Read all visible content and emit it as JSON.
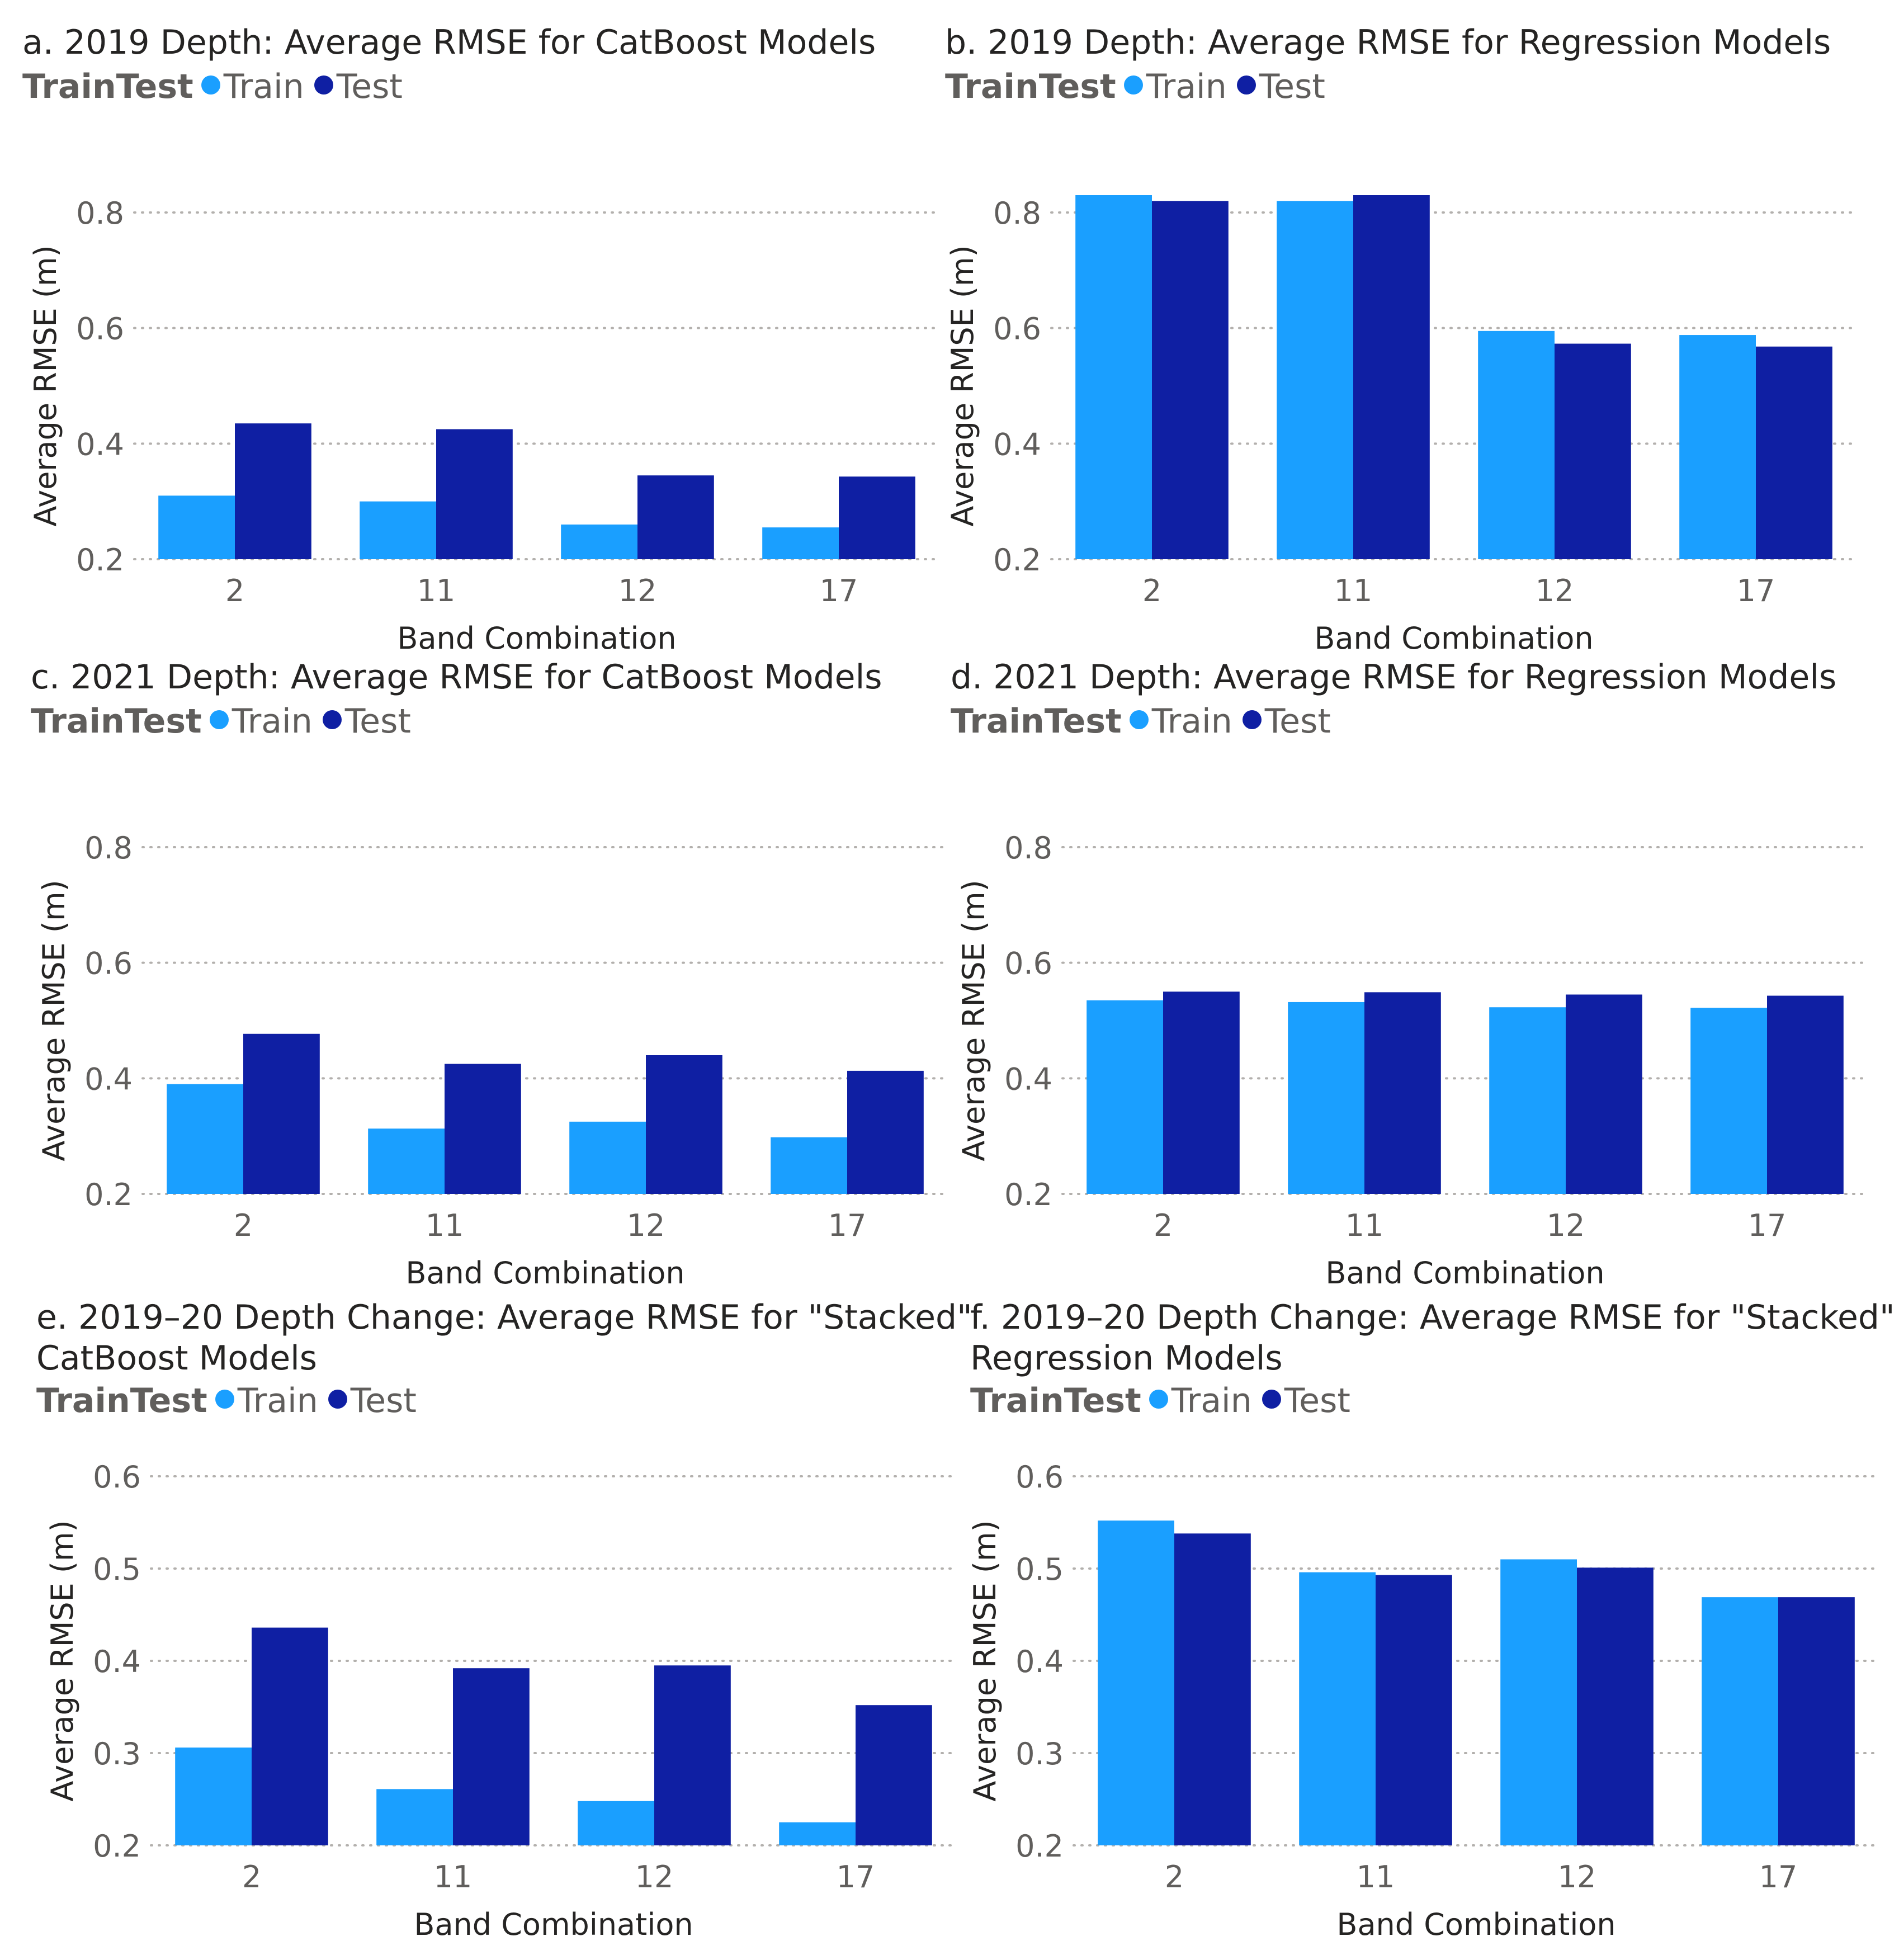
{
  "legend": {
    "title": "TrainTest",
    "series": [
      {
        "name": "Train",
        "color": "#1A9FFF"
      },
      {
        "name": "Test",
        "color": "#0F1FA3"
      }
    ]
  },
  "chart_data": [
    {
      "type": "bar",
      "title": "a. 2019 Depth: Average RMSE for CatBoost Models",
      "title_lines": [
        "a. 2019 Depth: Average RMSE for CatBoost Models"
      ],
      "xlabel": "Band Combination",
      "ylabel": "Average RMSE (m)",
      "categories": [
        "2",
        "11",
        "12",
        "17"
      ],
      "yticks": [
        "0.2",
        "0.4",
        "0.6",
        "0.8"
      ],
      "ylim": [
        0.2,
        0.8
      ],
      "series": [
        {
          "name": "Train",
          "values": [
            0.31,
            0.3,
            0.26,
            0.255
          ]
        },
        {
          "name": "Test",
          "values": [
            0.435,
            0.425,
            0.345,
            0.343
          ]
        }
      ]
    },
    {
      "type": "bar",
      "title": "b. 2019 Depth: Average RMSE for Regression Models",
      "title_lines": [
        "b. 2019 Depth: Average RMSE for Regression Models"
      ],
      "xlabel": "Band Combination",
      "ylabel": "Average RMSE (m)",
      "categories": [
        "2",
        "11",
        "12",
        "17"
      ],
      "yticks": [
        "0.2",
        "0.4",
        "0.6",
        "0.8"
      ],
      "ylim": [
        0.2,
        0.8
      ],
      "series": [
        {
          "name": "Train",
          "values": [
            0.83,
            0.82,
            0.595,
            0.588
          ]
        },
        {
          "name": "Test",
          "values": [
            0.82,
            0.83,
            0.573,
            0.568
          ]
        }
      ]
    },
    {
      "type": "bar",
      "title": "c. 2021 Depth: Average RMSE for CatBoost Models",
      "title_lines": [
        "c. 2021 Depth: Average RMSE for CatBoost Models"
      ],
      "xlabel": "Band Combination",
      "ylabel": "Average RMSE (m)",
      "categories": [
        "2",
        "11",
        "12",
        "17"
      ],
      "yticks": [
        "0.2",
        "0.4",
        "0.6",
        "0.8"
      ],
      "ylim": [
        0.2,
        0.8
      ],
      "series": [
        {
          "name": "Train",
          "values": [
            0.39,
            0.313,
            0.325,
            0.298
          ]
        },
        {
          "name": "Test",
          "values": [
            0.477,
            0.425,
            0.44,
            0.413
          ]
        }
      ]
    },
    {
      "type": "bar",
      "title": "d. 2021 Depth: Average RMSE for Regression Models",
      "title_lines": [
        "d. 2021 Depth: Average RMSE for Regression Models"
      ],
      "xlabel": "Band Combination",
      "ylabel": "Average RMSE (m)",
      "categories": [
        "2",
        "11",
        "12",
        "17"
      ],
      "yticks": [
        "0.2",
        "0.4",
        "0.6",
        "0.8"
      ],
      "ylim": [
        0.2,
        0.8
      ],
      "series": [
        {
          "name": "Train",
          "values": [
            0.535,
            0.532,
            0.523,
            0.522
          ]
        },
        {
          "name": "Test",
          "values": [
            0.55,
            0.549,
            0.545,
            0.543
          ]
        }
      ]
    },
    {
      "type": "bar",
      "title": "e. 2019–20 Depth Change: Average RMSE for \"Stacked\" CatBoost Models",
      "title_lines": [
        "e. 2019–20 Depth Change: Average RMSE for \"Stacked\"",
        "CatBoost Models"
      ],
      "xlabel": "Band Combination",
      "ylabel": "Average RMSE (m)",
      "categories": [
        "2",
        "11",
        "12",
        "17"
      ],
      "yticks": [
        "0.2",
        "0.3",
        "0.4",
        "0.5",
        "0.6"
      ],
      "ylim": [
        0.2,
        0.6
      ],
      "series": [
        {
          "name": "Train",
          "values": [
            0.306,
            0.261,
            0.248,
            0.225
          ]
        },
        {
          "name": "Test",
          "values": [
            0.436,
            0.392,
            0.395,
            0.352
          ]
        }
      ]
    },
    {
      "type": "bar",
      "title": "f. 2019–20 Depth Change: Average RMSE for \"Stacked\" Regression Models",
      "title_lines": [
        "f. 2019–20 Depth Change: Average RMSE for \"Stacked\"",
        "Regression Models"
      ],
      "xlabel": "Band Combination",
      "ylabel": "Average RMSE (m)",
      "categories": [
        "2",
        "11",
        "12",
        "17"
      ],
      "yticks": [
        "0.2",
        "0.3",
        "0.4",
        "0.5",
        "0.6"
      ],
      "ylim": [
        0.2,
        0.6
      ],
      "series": [
        {
          "name": "Train",
          "values": [
            0.552,
            0.496,
            0.51,
            0.469
          ]
        },
        {
          "name": "Test",
          "values": [
            0.538,
            0.493,
            0.501,
            0.469
          ]
        }
      ]
    }
  ]
}
